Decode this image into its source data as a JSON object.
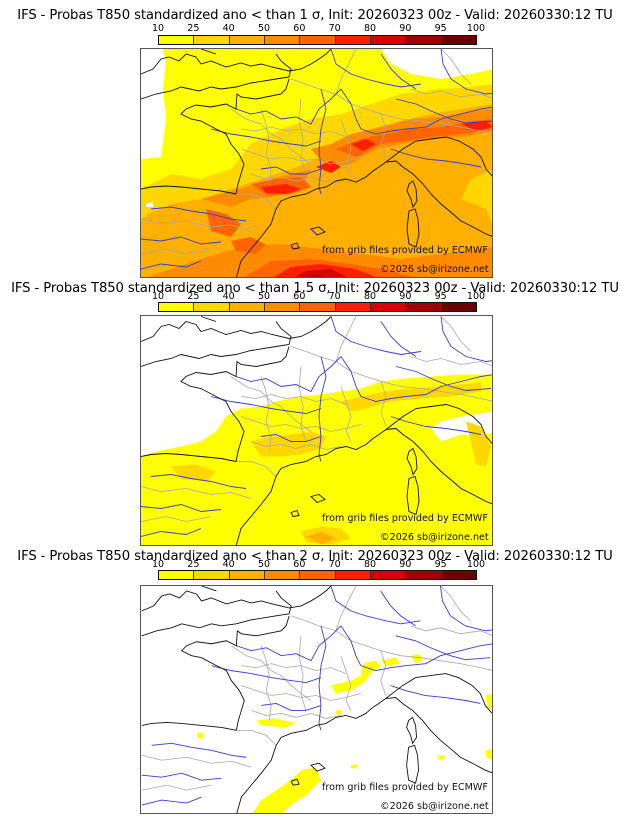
{
  "colorbar": {
    "tick_labels": [
      "10",
      "25",
      "40",
      "50",
      "60",
      "70",
      "80",
      "90",
      "95",
      "100"
    ],
    "colors": [
      "#ffff00",
      "#ffd700",
      "#ffb000",
      "#ff8c00",
      "#ff6400",
      "#ff1e00",
      "#d90000",
      "#a00000",
      "#6a0000"
    ]
  },
  "panels": [
    {
      "title": "IFS - Probas T850  standardized ano < than 1 σ, Init: 20260323 00z - Valid: 20260330:12 TU",
      "threshold": "1 σ",
      "source_credit": "from grib files provided by ECMWF",
      "copyright": "©2026 sb@irizone.net"
    },
    {
      "title": "IFS - Probas T850  standardized ano < than 1.5 σ, Init: 20260323 00z - Valid: 20260330:12 TU",
      "threshold": "1.5 σ",
      "source_credit": "from grib files provided by ECMWF",
      "copyright": "©2026 sb@irizone.net"
    },
    {
      "title": "IFS - Probas T850  standardized ano < than 2 σ, Init: 20260323 00z - Valid: 20260330:12 TU",
      "threshold": "2 σ",
      "source_credit": "from grib files provided by ECMWF",
      "copyright": "©2026 sb@irizone.net"
    }
  ],
  "map_layers": {
    "coastline_color": "#111111",
    "river_color": "#3a3ad6",
    "border_color": "#a8a8a8"
  }
}
